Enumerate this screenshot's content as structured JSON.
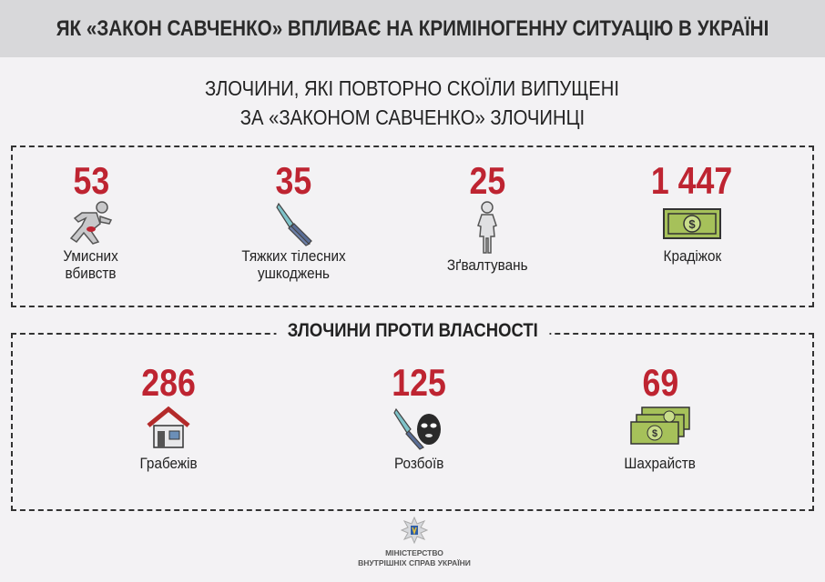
{
  "header": {
    "title": "ЯК «ЗАКОН САВЧЕНКО» ВПЛИВАЄ НА КРИМІНОГЕННУ СИТУАЦІЮ В УКРАЇНІ"
  },
  "subtitle": {
    "line1": "ЗЛОЧИНИ, ЯКІ ПОВТОРНО СКОЇЛИ ВИПУЩЕНІ",
    "line2": "ЗА «ЗАКОНОМ САВЧЕНКО» ЗЛОЧИНЦІ"
  },
  "colors": {
    "accent": "#be2431",
    "header_bg": "#d8d8da",
    "background": "#f3f2f4"
  },
  "crimes": [
    {
      "value": "53",
      "label1": "Умисних",
      "label2": "вбивств",
      "icon": "running-figure-icon"
    },
    {
      "value": "35",
      "label1": "Тяжких тілесних",
      "label2": "ушкоджень",
      "icon": "knife-icon"
    },
    {
      "value": "25",
      "label1": "Зґвалтувань",
      "label2": "",
      "icon": "woman-icon"
    },
    {
      "value": "1 447",
      "label1": "Крадіжок",
      "label2": "",
      "icon": "banknote-icon"
    }
  ],
  "property": {
    "title": "ЗЛОЧИНИ ПРОТИ ВЛАСНОСТІ",
    "items": [
      {
        "value": "286",
        "label": "Грабежів",
        "icon": "house-icon"
      },
      {
        "value": "125",
        "label": "Розбоїв",
        "icon": "knife-mask-icon"
      },
      {
        "value": "69",
        "label": "Шахрайств",
        "icon": "banknotes-stack-icon"
      }
    ]
  },
  "footer": {
    "line1": "МІНІСТЕРСТВО",
    "line2": "ВНУТРІШНІХ СПРАВ УКРАЇНИ"
  }
}
